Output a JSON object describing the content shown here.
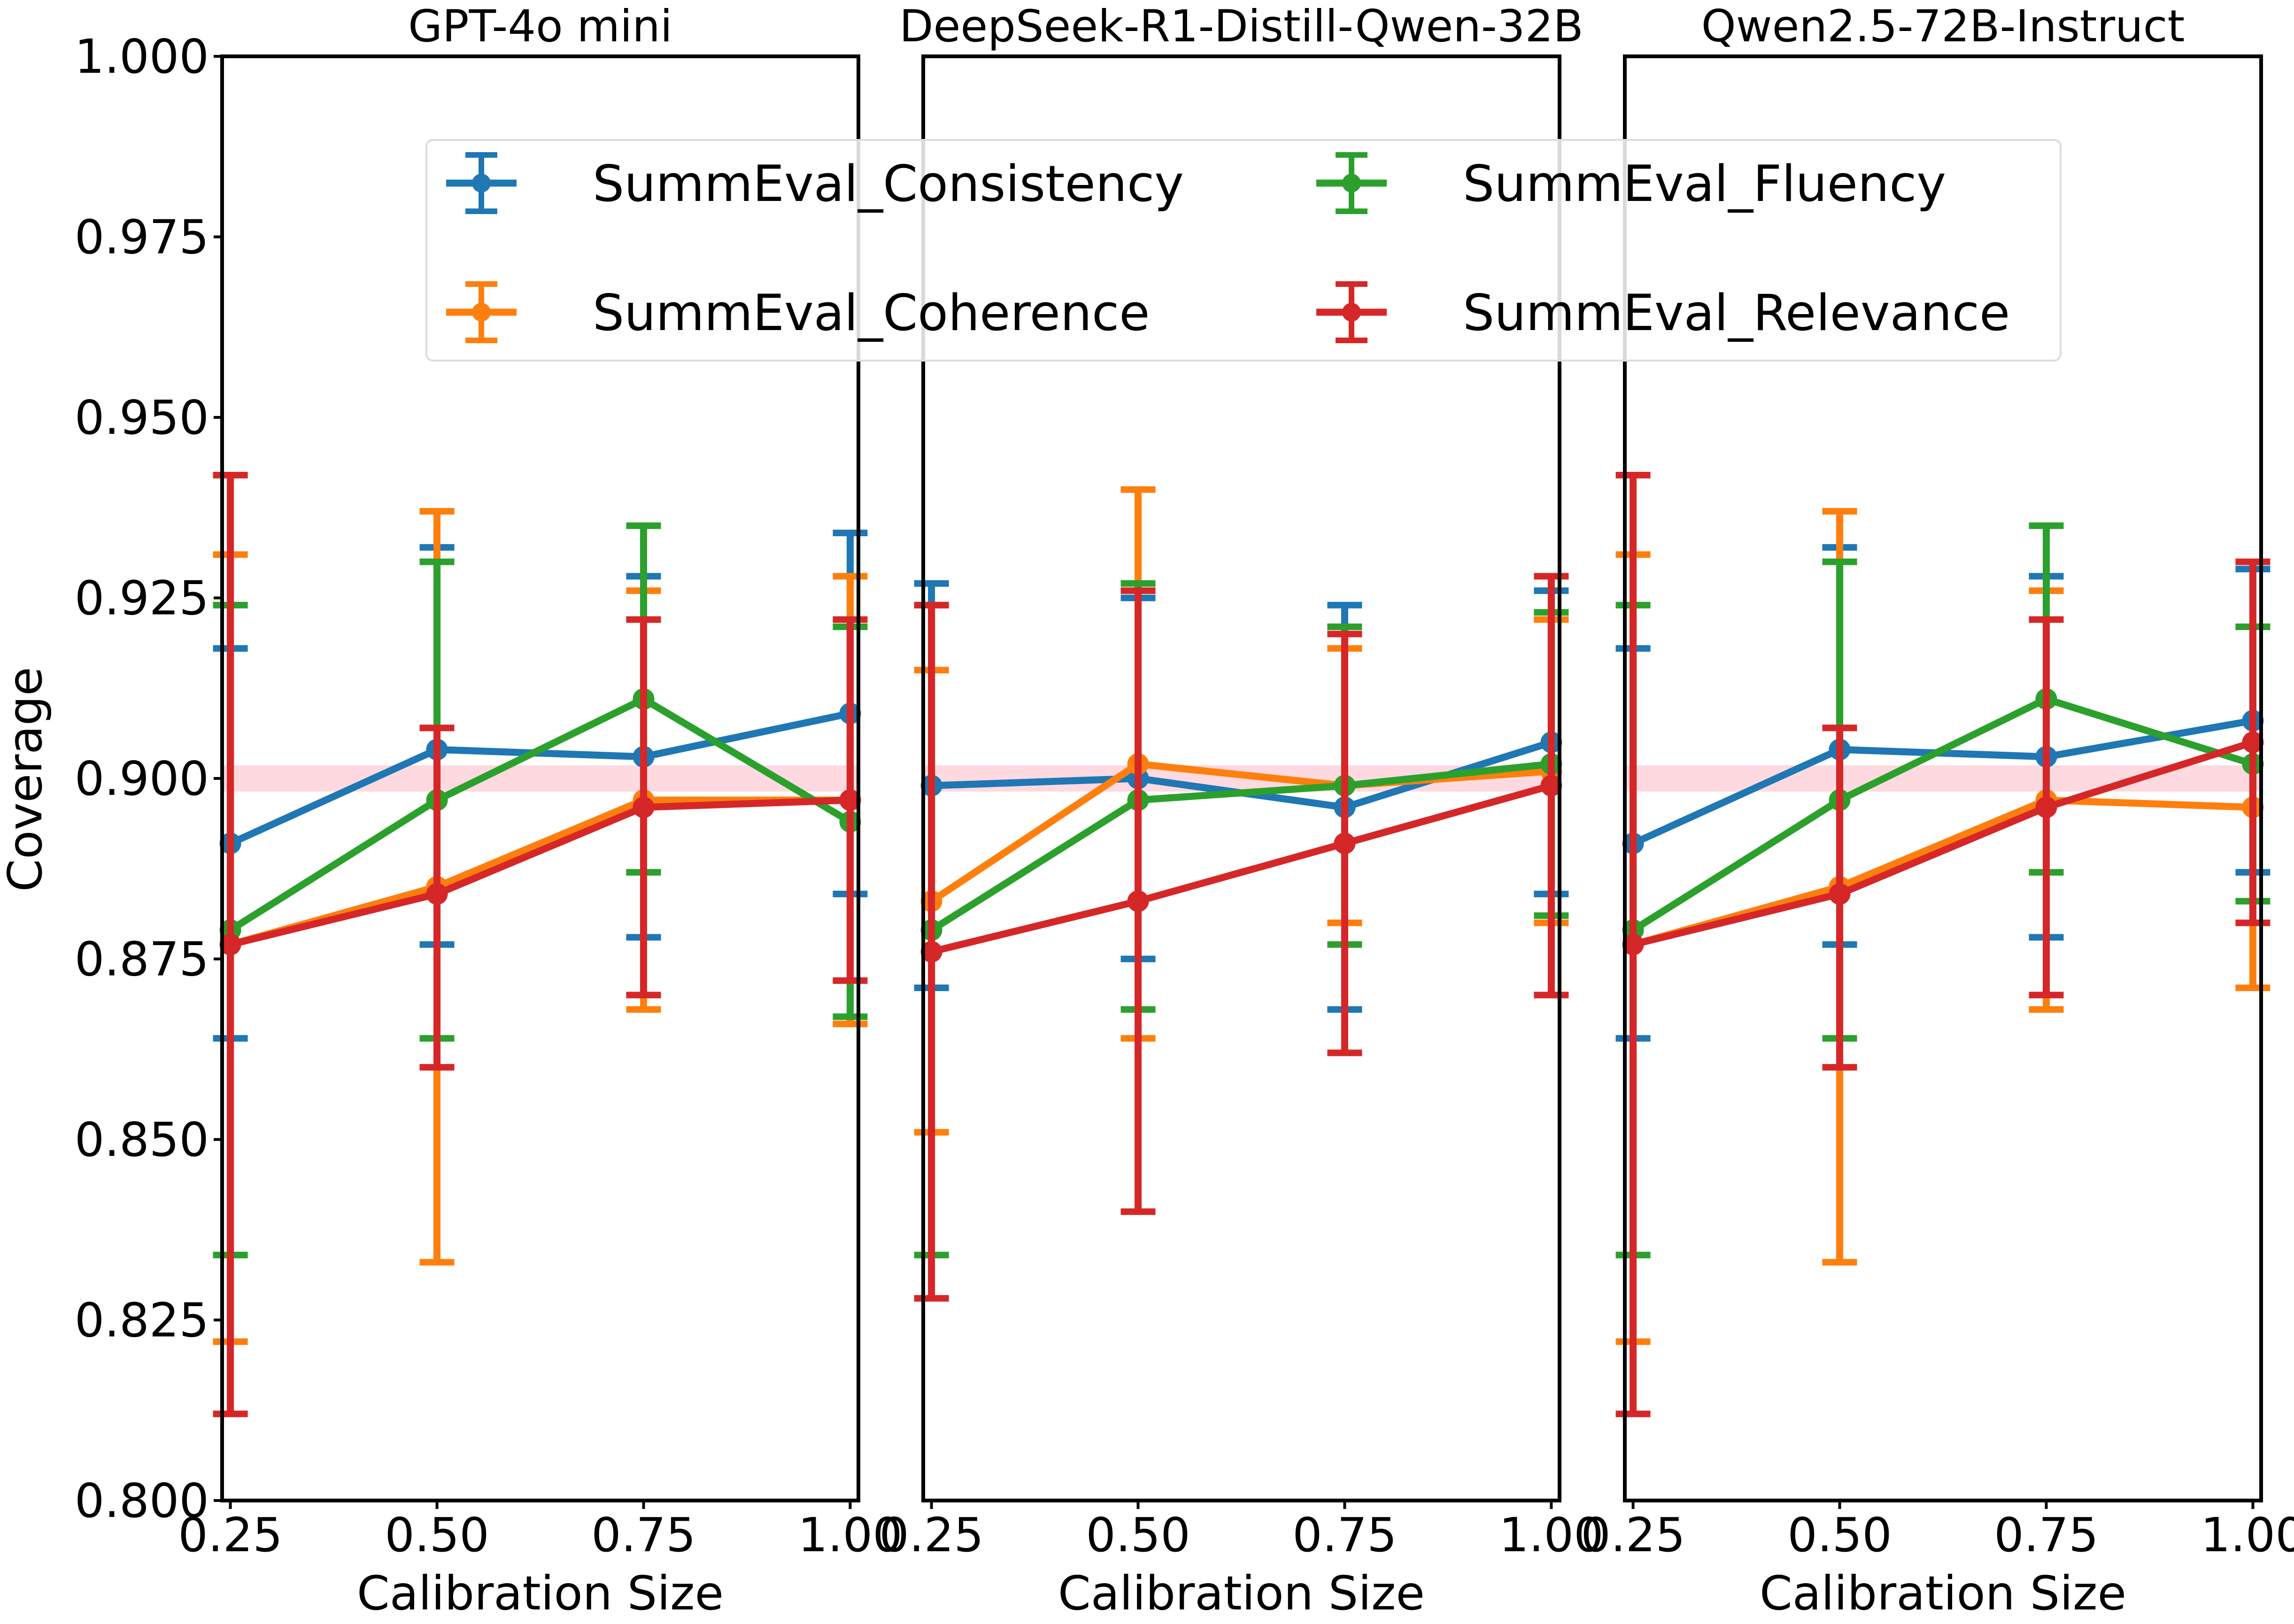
{
  "chart_data": {
    "type": "line",
    "errorbars": true,
    "xlabel": "Calibration Size",
    "ylabel": "Coverage",
    "xlim": [
      0.24,
      1.01
    ],
    "ylim": [
      0.8,
      1.0
    ],
    "xticks": [
      "0.25",
      "0.50",
      "0.75",
      "1.00"
    ],
    "yticks": [
      "0.800",
      "0.825",
      "0.850",
      "0.875",
      "0.900",
      "0.925",
      "0.950",
      "0.975",
      "1.000"
    ],
    "target": {
      "y": 0.9,
      "color": "#ffc0cb"
    },
    "legend": {
      "placement": "top-center",
      "entries": [
        "SummEval_Consistency",
        "SummEval_Fluency",
        "SummEval_Coherence",
        "SummEval_Relevance"
      ]
    },
    "series_colors": {
      "SummEval_Consistency": "#1f77b4",
      "SummEval_Coherence": "#ff7f0e",
      "SummEval_Fluency": "#2ca02c",
      "SummEval_Relevance": "#d62728"
    },
    "panels": [
      {
        "title": "GPT-4o mini",
        "show_yaxis": true,
        "series": [
          {
            "name": "SummEval_Consistency",
            "x": [
              0.25,
              0.5,
              0.75,
              1.0
            ],
            "y": [
              0.891,
              0.904,
              0.903,
              0.909
            ],
            "err_low": [
              0.864,
              0.877,
              0.878,
              0.884
            ],
            "err_high": [
              0.918,
              0.932,
              0.928,
              0.934
            ]
          },
          {
            "name": "SummEval_Coherence",
            "x": [
              0.25,
              0.5,
              0.75,
              1.0
            ],
            "y": [
              0.877,
              0.885,
              0.897,
              0.897
            ],
            "err_low": [
              0.822,
              0.833,
              0.868,
              0.866
            ],
            "err_high": [
              0.931,
              0.937,
              0.926,
              0.928
            ]
          },
          {
            "name": "SummEval_Fluency",
            "x": [
              0.25,
              0.5,
              0.75,
              1.0
            ],
            "y": [
              0.879,
              0.897,
              0.911,
              0.894
            ],
            "err_low": [
              0.834,
              0.864,
              0.887,
              0.867
            ],
            "err_high": [
              0.924,
              0.93,
              0.935,
              0.921
            ]
          },
          {
            "name": "SummEval_Relevance",
            "x": [
              0.25,
              0.5,
              0.75,
              1.0
            ],
            "y": [
              0.877,
              0.884,
              0.896,
              0.897
            ],
            "err_low": [
              0.812,
              0.86,
              0.87,
              0.872
            ],
            "err_high": [
              0.942,
              0.907,
              0.922,
              0.922
            ]
          }
        ]
      },
      {
        "title": "DeepSeek-R1-Distill-Qwen-32B",
        "show_yaxis": false,
        "series": [
          {
            "name": "SummEval_Consistency",
            "x": [
              0.25,
              0.5,
              0.75,
              1.0
            ],
            "y": [
              0.899,
              0.9,
              0.896,
              0.905
            ],
            "err_low": [
              0.871,
              0.875,
              0.868,
              0.884
            ],
            "err_high": [
              0.927,
              0.925,
              0.924,
              0.926
            ]
          },
          {
            "name": "SummEval_Coherence",
            "x": [
              0.25,
              0.5,
              0.75,
              1.0
            ],
            "y": [
              0.883,
              0.902,
              0.899,
              0.901
            ],
            "err_low": [
              0.851,
              0.864,
              0.88,
              0.88
            ],
            "err_high": [
              0.915,
              0.94,
              0.918,
              0.922
            ]
          },
          {
            "name": "SummEval_Fluency",
            "x": [
              0.25,
              0.5,
              0.75,
              1.0
            ],
            "y": [
              0.879,
              0.897,
              0.899,
              0.902
            ],
            "err_low": [
              0.834,
              0.868,
              0.877,
              0.881
            ],
            "err_high": [
              0.924,
              0.927,
              0.921,
              0.923
            ]
          },
          {
            "name": "SummEval_Relevance",
            "x": [
              0.25,
              0.5,
              0.75,
              1.0
            ],
            "y": [
              0.876,
              0.883,
              0.891,
              0.899
            ],
            "err_low": [
              0.828,
              0.84,
              0.862,
              0.87
            ],
            "err_high": [
              0.924,
              0.926,
              0.92,
              0.928
            ]
          }
        ]
      },
      {
        "title": "Qwen2.5-72B-Instruct",
        "show_yaxis": false,
        "series": [
          {
            "name": "SummEval_Consistency",
            "x": [
              0.25,
              0.5,
              0.75,
              1.0
            ],
            "y": [
              0.891,
              0.904,
              0.903,
              0.908
            ],
            "err_low": [
              0.864,
              0.877,
              0.878,
              0.887
            ],
            "err_high": [
              0.918,
              0.932,
              0.928,
              0.929
            ]
          },
          {
            "name": "SummEval_Coherence",
            "x": [
              0.25,
              0.5,
              0.75,
              1.0
            ],
            "y": [
              0.877,
              0.885,
              0.897,
              0.896
            ],
            "err_low": [
              0.822,
              0.833,
              0.868,
              0.871
            ],
            "err_high": [
              0.931,
              0.937,
              0.926,
              0.921
            ]
          },
          {
            "name": "SummEval_Fluency",
            "x": [
              0.25,
              0.5,
              0.75,
              1.0
            ],
            "y": [
              0.879,
              0.897,
              0.911,
              0.902
            ],
            "err_low": [
              0.834,
              0.864,
              0.887,
              0.883
            ],
            "err_high": [
              0.924,
              0.93,
              0.935,
              0.921
            ]
          },
          {
            "name": "SummEval_Relevance",
            "x": [
              0.25,
              0.5,
              0.75,
              1.0
            ],
            "y": [
              0.877,
              0.884,
              0.896,
              0.905
            ],
            "err_low": [
              0.812,
              0.86,
              0.87,
              0.88
            ],
            "err_high": [
              0.942,
              0.907,
              0.922,
              0.93
            ]
          }
        ]
      }
    ]
  }
}
